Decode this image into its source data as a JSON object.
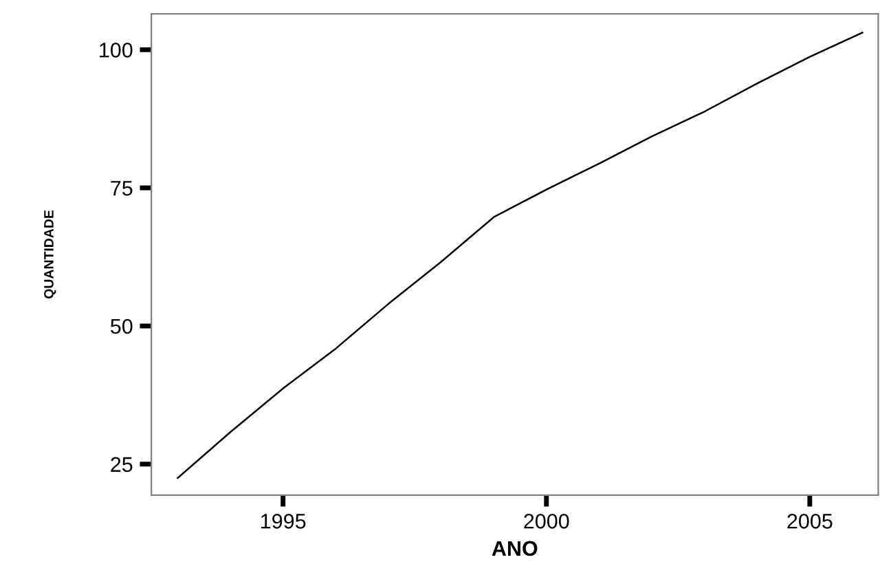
{
  "chart_data": {
    "type": "line",
    "xlabel": "ANO",
    "ylabel": "QUANTIDADE",
    "x": [
      1993,
      1994,
      1995,
      1996,
      1997,
      1998,
      1999,
      2000,
      2001,
      2002,
      2003,
      2004,
      2005,
      2006
    ],
    "series": [
      {
        "color": "#000000",
        "values": [
          22.5,
          30.8,
          38.7,
          45.9,
          54.0,
          61.6,
          69.7,
          74.7,
          79.4,
          84.3,
          88.8,
          93.9,
          98.7,
          103.1
        ]
      }
    ],
    "xlim": [
      1992.5,
      2006.3
    ],
    "xticks": [
      1995,
      2000,
      2005
    ],
    "ylim": [
      19.4,
      106.5
    ],
    "yticks": [
      25,
      50,
      75,
      100
    ],
    "grid": false,
    "marker": "none",
    "line_style": "solid"
  }
}
